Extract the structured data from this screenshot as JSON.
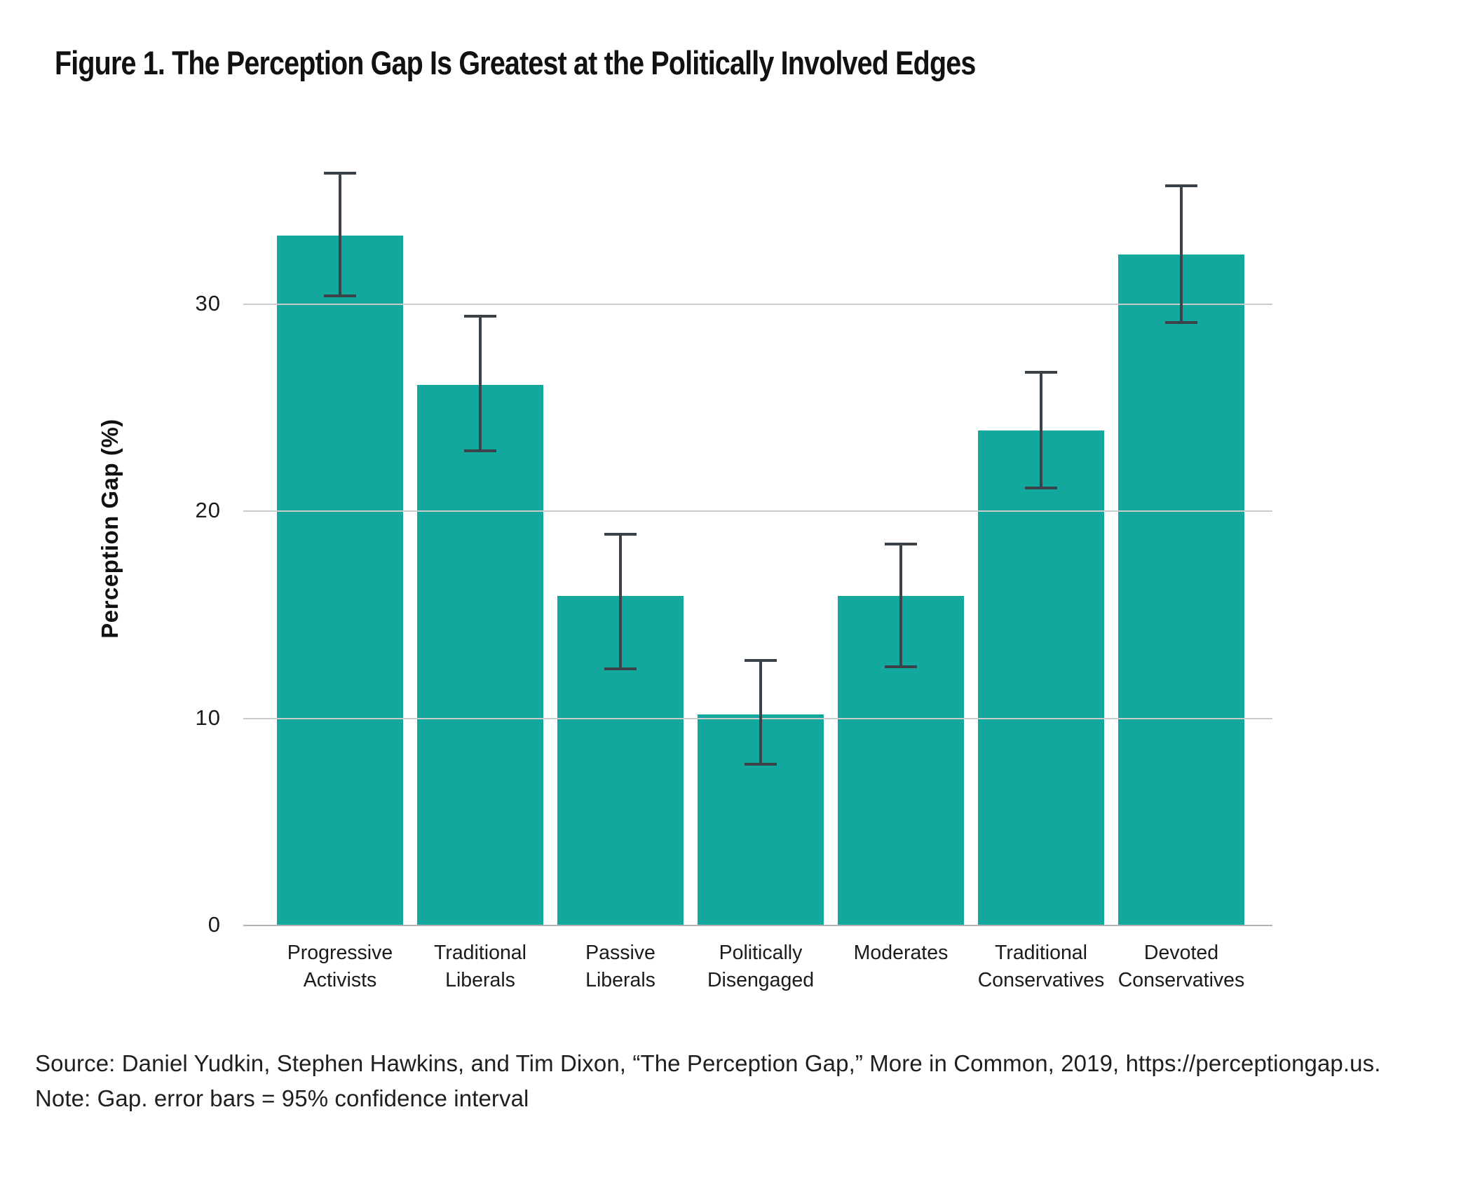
{
  "title": "Figure 1. The Perception Gap Is Greatest at the Politically Involved Edges",
  "chart_data": {
    "type": "bar",
    "title": "Figure 1. The Perception Gap Is Greatest at the Politically Involved Edges",
    "xlabel": "",
    "ylabel": "Perception Gap (%)",
    "ylim": [
      0,
      38
    ],
    "yticks": [
      0,
      10,
      20,
      30
    ],
    "grid": "horizontal",
    "legend": "none",
    "categories": [
      "Progressive\nActivists",
      "Traditional\nLiberals",
      "Passive\nLiberals",
      "Politically\nDisengaged",
      "Moderates",
      "Traditional\nConservatives",
      "Devoted\nConservatives"
    ],
    "values": [
      33.3,
      26.1,
      15.9,
      10.2,
      15.9,
      23.9,
      32.4
    ],
    "ci_low": [
      30.4,
      22.9,
      12.4,
      7.8,
      12.5,
      21.1,
      29.1
    ],
    "ci_high": [
      36.3,
      29.4,
      18.9,
      12.8,
      18.4,
      26.7,
      35.7
    ],
    "error_bars": "95% confidence interval",
    "bar_color": "#13a89e",
    "error_color": "#3b424a",
    "gridline_color": "#cbcbcb",
    "axis_line_color": "#b3b3b3"
  },
  "footer": {
    "source": "Source: Daniel Yudkin, Stephen Hawkins, and Tim Dixon, “The Perception Gap,” More in Common, 2019, https://perceptiongap.us.",
    "note": "Note: Gap. error bars = 95% confidence interval"
  }
}
